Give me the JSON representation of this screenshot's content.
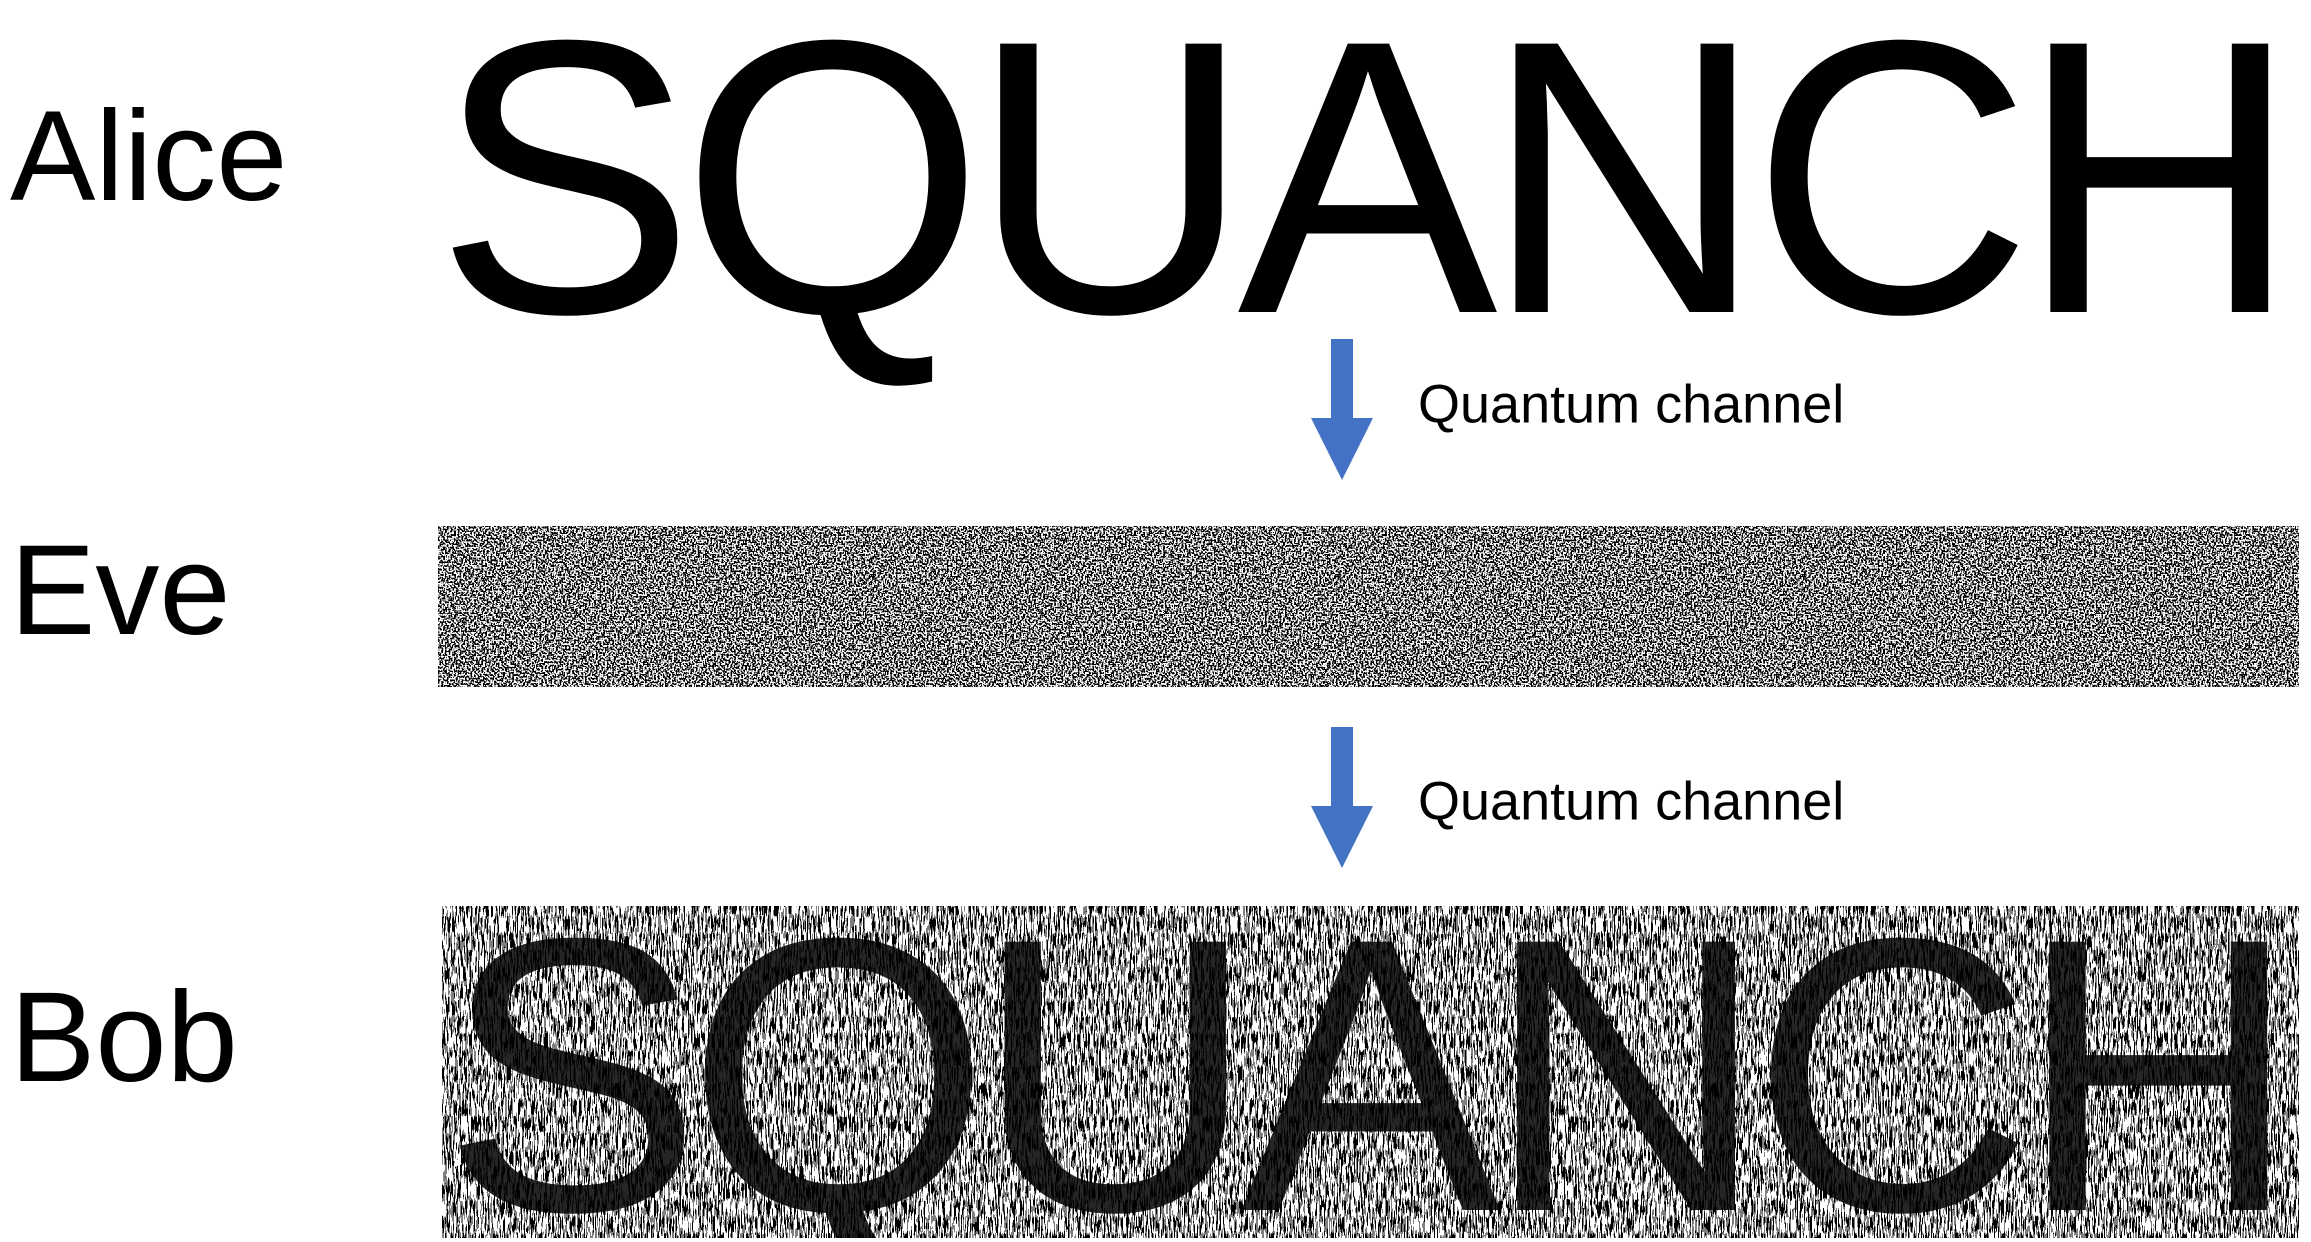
{
  "rows": [
    {
      "label": "Alice"
    },
    {
      "label": "Eve"
    },
    {
      "label": "Bob"
    }
  ],
  "channels": [
    {
      "label": "Quantum channel"
    },
    {
      "label": "Quantum channel"
    }
  ],
  "logo": "SQUANCH"
}
